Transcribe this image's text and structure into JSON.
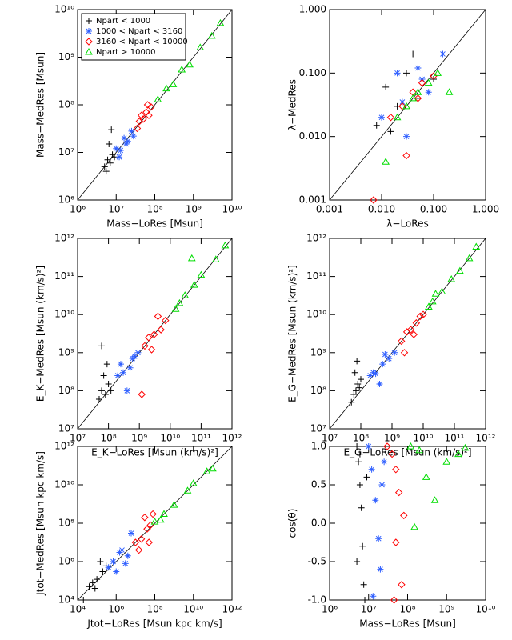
{
  "chart_data": [
    {
      "type": "scatter",
      "log_x": true,
      "log_y": true,
      "identity_line": true,
      "legend": "upper left",
      "x_label": "Mass−LoRes [Msun]",
      "y_label": "Mass−MedRes [Msun]",
      "xlim": [
        1000000.0,
        10000000000.0
      ],
      "ylim": [
        1000000.0,
        10000000000.0
      ],
      "xticks": [
        {
          "value": 1000000.0,
          "label": "10⁶"
        },
        {
          "value": 10000000.0,
          "label": "10⁷"
        },
        {
          "value": 100000000.0,
          "label": "10⁸"
        },
        {
          "value": 1000000000.0,
          "label": "10⁹"
        },
        {
          "value": 10000000000.0,
          "label": "10¹⁰"
        }
      ],
      "yticks": [
        {
          "value": 1000000.0,
          "label": "10⁶"
        },
        {
          "value": 10000000.0,
          "label": "10⁷"
        },
        {
          "value": 100000000.0,
          "label": "10⁸"
        },
        {
          "value": 1000000000.0,
          "label": "10⁹"
        },
        {
          "value": 10000000000.0,
          "label": "10¹⁰"
        }
      ],
      "series": [
        {
          "name": "Npart < 1000",
          "color": "#000000",
          "marker": "plus",
          "x": [
            5000000.0,
            6000000.0,
            7000000.0,
            8000000.0,
            6500000.0,
            9000000.0,
            7500000.0,
            5500000.0
          ],
          "y": [
            5000000.0,
            7000000.0,
            6000000.0,
            9000000.0,
            15000000.0,
            8000000.0,
            30000000.0,
            4000000.0
          ]
        },
        {
          "name": "1000 < Npart < 3160",
          "color": "#2f5fff",
          "marker": "star",
          "x": [
            10000000.0,
            13000000.0,
            16000000.0,
            20000000.0,
            25000000.0,
            12000000.0,
            28000000.0,
            18000000.0
          ],
          "y": [
            12000000.0,
            11000000.0,
            20000000.0,
            17000000.0,
            28000000.0,
            8000000.0,
            22000000.0,
            15000000.0
          ]
        },
        {
          "name": "3160 < Npart < 10000",
          "color": "#ff0000",
          "marker": "diamond",
          "x": [
            35000000.0,
            40000000.0,
            50000000.0,
            60000000.0,
            70000000.0,
            45000000.0,
            80000000.0,
            65000000.0
          ],
          "y": [
            32000000.0,
            45000000.0,
            50000000.0,
            70000000.0,
            60000000.0,
            60000000.0,
            90000000.0,
            100000000.0
          ]
        },
        {
          "name": "Npart > 10000",
          "color": "#00dd00",
          "marker": "triangle",
          "x": [
            120000000.0,
            200000000.0,
            300000000.0,
            500000000.0,
            800000000.0,
            1500000000.0,
            3000000000.0,
            5000000000.0
          ],
          "y": [
            130000000.0,
            220000000.0,
            270000000.0,
            550000000.0,
            700000000.0,
            1600000000.0,
            2800000000.0,
            5200000000.0
          ]
        }
      ]
    },
    {
      "type": "scatter",
      "log_x": true,
      "log_y": true,
      "identity_line": true,
      "x_label": "λ−LoRes",
      "y_label": "λ−MedRes",
      "xlim": [
        0.001,
        1
      ],
      "ylim": [
        0.001,
        1
      ],
      "xticks": [
        0.001,
        {
          "value": 0.01,
          "label": "0.010"
        },
        {
          "value": 0.1,
          "label": "0.100"
        },
        {
          "value": 1,
          "label": "1.000"
        }
      ],
      "yticks": [
        0.001,
        {
          "value": 0.01,
          "label": "0.010"
        },
        {
          "value": 0.1,
          "label": "0.100"
        },
        {
          "value": 1,
          "label": "1.000"
        }
      ],
      "series": [
        {
          "color": "#000000",
          "marker": "plus",
          "x": [
            0.008,
            0.012,
            0.02,
            0.03,
            0.05,
            0.015,
            0.04,
            0.1
          ],
          "y": [
            0.015,
            0.06,
            0.03,
            0.1,
            0.04,
            0.012,
            0.2,
            0.08
          ]
        },
        {
          "color": "#2f5fff",
          "marker": "star",
          "x": [
            0.01,
            0.02,
            0.03,
            0.05,
            0.08,
            0.15,
            0.025,
            0.06
          ],
          "y": [
            0.02,
            0.1,
            0.01,
            0.12,
            0.05,
            0.2,
            0.035,
            0.08
          ]
        },
        {
          "color": "#ff0000",
          "marker": "diamond",
          "x": [
            0.007,
            0.015,
            0.03,
            0.04,
            0.06,
            0.1,
            0.025,
            0.05
          ],
          "y": [
            0.001,
            0.02,
            0.005,
            0.05,
            0.07,
            0.09,
            0.03,
            0.04
          ]
        },
        {
          "color": "#00dd00",
          "marker": "triangle",
          "x": [
            0.012,
            0.02,
            0.03,
            0.05,
            0.08,
            0.12,
            0.2,
            0.04
          ],
          "y": [
            0.004,
            0.02,
            0.03,
            0.05,
            0.07,
            0.1,
            0.05,
            0.04
          ]
        }
      ]
    },
    {
      "type": "scatter",
      "log_x": true,
      "log_y": true,
      "identity_line": true,
      "x_label": "E_K−LoRes [Msun (km/s)²]",
      "y_label": "E_K−MedRes [Msun (km/s)²]",
      "xlim": [
        10000000.0,
        1000000000000.0
      ],
      "ylim": [
        10000000.0,
        1000000000000.0
      ],
      "xticks": [
        {
          "value": 10000000.0,
          "label": "10⁷"
        },
        {
          "value": 100000000.0,
          "label": "10⁸"
        },
        {
          "value": 1000000000.0,
          "label": "10⁹"
        },
        {
          "value": 10000000000.0,
          "label": "10¹⁰"
        },
        {
          "value": 100000000000.0,
          "label": "10¹¹"
        },
        {
          "value": 1000000000000.0,
          "label": "10¹²"
        }
      ],
      "yticks": [
        {
          "value": 10000000.0,
          "label": "10⁷"
        },
        {
          "value": 100000000.0,
          "label": "10⁸"
        },
        {
          "value": 1000000000.0,
          "label": "10⁹"
        },
        {
          "value": 10000000000.0,
          "label": "10¹⁰"
        },
        {
          "value": 100000000000.0,
          "label": "10¹¹"
        },
        {
          "value": 1000000000000.0,
          "label": "10¹²"
        }
      ],
      "series": [
        {
          "color": "#000000",
          "marker": "plus",
          "x": [
            50000000.0,
            60000000.0,
            80000000.0,
            100000000.0,
            70000000.0,
            120000000.0,
            90000000.0,
            60000000.0
          ],
          "y": [
            60000000.0,
            100000000.0,
            80000000.0,
            150000000.0,
            250000000.0,
            100000000.0,
            500000000.0,
            1500000000.0
          ]
        },
        {
          "color": "#2f5fff",
          "marker": "star",
          "x": [
            200000000.0,
            300000000.0,
            500000000.0,
            700000000.0,
            400000000.0,
            250000000.0,
            600000000.0,
            900000000.0
          ],
          "y": [
            250000000.0,
            300000000.0,
            400000000.0,
            800000000.0,
            100000000.0,
            500000000.0,
            700000000.0,
            1000000000.0
          ]
        },
        {
          "color": "#ff0000",
          "marker": "diamond",
          "x": [
            1500000000.0,
            2000000000.0,
            3000000000.0,
            5000000000.0,
            7000000000.0,
            2500000000.0,
            4000000000.0,
            1200000000.0
          ],
          "y": [
            1500000000.0,
            2500000000.0,
            3000000000.0,
            4000000000.0,
            7000000000.0,
            1200000000.0,
            9000000000.0,
            80000000.0
          ]
        },
        {
          "color": "#00dd00",
          "marker": "triangle",
          "x": [
            15000000000.0,
            30000000000.0,
            60000000000.0,
            100000000000.0,
            300000000000.0,
            600000000000.0,
            20000000000.0,
            50000000000.0
          ],
          "y": [
            14000000000.0,
            32000000000.0,
            60000000000.0,
            110000000000.0,
            280000000000.0,
            650000000000.0,
            20000000000.0,
            300000000000.0
          ]
        }
      ]
    },
    {
      "type": "scatter",
      "log_x": true,
      "log_y": true,
      "identity_line": true,
      "x_label": "E_G−LoRes [Msun (km/s)²]",
      "y_label": "E_G−MedRes [Msun (km/s)²]",
      "xlim": [
        10000000.0,
        1000000000000.0
      ],
      "ylim": [
        10000000.0,
        1000000000000.0
      ],
      "xticks": [
        {
          "value": 10000000.0,
          "label": "10⁷"
        },
        {
          "value": 100000000.0,
          "label": "10⁸"
        },
        {
          "value": 1000000000.0,
          "label": "10⁹"
        },
        {
          "value": 10000000000.0,
          "label": "10¹⁰"
        },
        {
          "value": 100000000000.0,
          "label": "10¹¹"
        },
        {
          "value": 1000000000000.0,
          "label": "10¹²"
        }
      ],
      "yticks": [
        {
          "value": 10000000.0,
          "label": "10⁷"
        },
        {
          "value": 100000000.0,
          "label": "10⁸"
        },
        {
          "value": 1000000000.0,
          "label": "10⁹"
        },
        {
          "value": 10000000000.0,
          "label": "10¹⁰"
        },
        {
          "value": 100000000000.0,
          "label": "10¹¹"
        },
        {
          "value": 1000000000000.0,
          "label": "10¹²"
        }
      ],
      "series": [
        {
          "color": "#000000",
          "marker": "plus",
          "x": [
            50000000.0,
            60000000.0,
            70000000.0,
            80000000.0,
            100000000.0,
            65000000.0,
            90000000.0,
            75000000.0
          ],
          "y": [
            50000000.0,
            80000000.0,
            100000000.0,
            150000000.0,
            200000000.0,
            300000000.0,
            120000000.0,
            600000000.0
          ]
        },
        {
          "color": "#2f5fff",
          "marker": "star",
          "x": [
            200000000.0,
            300000000.0,
            500000000.0,
            800000000.0,
            1200000000.0,
            400000000.0,
            600000000.0,
            250000000.0
          ],
          "y": [
            250000000.0,
            280000000.0,
            500000000.0,
            700000000.0,
            1000000000.0,
            150000000.0,
            900000000.0,
            300000000.0
          ]
        },
        {
          "color": "#ff0000",
          "marker": "diamond",
          "x": [
            2000000000.0,
            3000000000.0,
            4000000000.0,
            6000000000.0,
            8000000000.0,
            5000000000.0,
            2500000000.0,
            10000000000.0
          ],
          "y": [
            2000000000.0,
            3500000000.0,
            4000000000.0,
            6000000000.0,
            9000000000.0,
            3000000000.0,
            1000000000.0,
            10000000000.0
          ]
        },
        {
          "color": "#00dd00",
          "marker": "triangle",
          "x": [
            15000000000.0,
            20000000000.0,
            40000000000.0,
            80000000000.0,
            150000000000.0,
            300000000000.0,
            500000000000.0,
            25000000000.0
          ],
          "y": [
            16000000000.0,
            22000000000.0,
            40000000000.0,
            85000000000.0,
            140000000000.0,
            300000000000.0,
            600000000000.0,
            35000000000.0
          ]
        }
      ]
    },
    {
      "type": "scatter",
      "log_x": true,
      "log_y": true,
      "identity_line": true,
      "x_label": "Jtot−LoRes [Msun kpc km/s]",
      "y_label": "Jtot−MedRes [Msun kpc km/s]",
      "xlim": [
        10000.0,
        1000000000000.0
      ],
      "ylim": [
        10000.0,
        1000000000000.0
      ],
      "xticks": [
        {
          "value": 10000.0,
          "label": "10⁴"
        },
        {
          "value": 1000000.0,
          "label": "10⁶"
        },
        {
          "value": 100000000.0,
          "label": "10⁸"
        },
        {
          "value": 10000000000.0,
          "label": "10¹⁰"
        },
        {
          "value": 1000000000000.0,
          "label": "10¹²"
        }
      ],
      "yticks": [
        {
          "value": 10000.0,
          "label": "10⁴"
        },
        {
          "value": 1000000.0,
          "label": "10⁶"
        },
        {
          "value": 100000000.0,
          "label": "10⁸"
        },
        {
          "value": 10000000000.0,
          "label": "10¹⁰"
        },
        {
          "value": 1000000000000.0,
          "label": "10¹²"
        }
      ],
      "series": [
        {
          "color": "#000000",
          "marker": "plus",
          "x": [
            20000.0,
            40000.0,
            60000.0,
            100000.0,
            200000.0,
            80000.0,
            150000.0,
            300000.0
          ],
          "y": [
            10000.0,
            50000.0,
            80000.0,
            120000.0,
            300000.0,
            40000.0,
            1000000.0,
            600000.0
          ]
        },
        {
          "color": "#2f5fff",
          "marker": "star",
          "x": [
            400000.0,
            700000.0,
            1000000.0,
            2000000.0,
            4000000.0,
            6000000.0,
            1500000.0,
            3000000.0
          ],
          "y": [
            500000.0,
            1000000.0,
            300000.0,
            4000000.0,
            2000000.0,
            30000000.0,
            3000000.0,
            800000.0
          ]
        },
        {
          "color": "#ff0000",
          "marker": "diamond",
          "x": [
            10000000.0,
            20000000.0,
            40000000.0,
            60000000.0,
            80000000.0,
            30000000.0,
            50000000.0,
            15000000.0
          ],
          "y": [
            10000000.0,
            15000000.0,
            50000000.0,
            80000000.0,
            300000000.0,
            200000000.0,
            10000000.0,
            4000000.0
          ]
        },
        {
          "color": "#00dd00",
          "marker": "triangle",
          "x": [
            100000000.0,
            300000000.0,
            1000000000.0,
            5000000000.0,
            10000000000.0,
            50000000000.0,
            200000000.0,
            100000000000.0
          ],
          "y": [
            120000000.0,
            300000000.0,
            900000000.0,
            5000000000.0,
            12000000000.0,
            50000000000.0,
            150000000.0,
            70000000000.0
          ]
        }
      ]
    },
    {
      "type": "scatter",
      "log_x": true,
      "log_y": false,
      "identity_line": false,
      "x_label": "Mass−LoRes [Msun]",
      "y_label": "cos(θ)",
      "xlim": [
        1000000.0,
        10000000000.0
      ],
      "ylim": [
        -1,
        1
      ],
      "xticks": [
        {
          "value": 1000000.0,
          "label": "10⁶"
        },
        {
          "value": 10000000.0,
          "label": "10⁷"
        },
        {
          "value": 100000000.0,
          "label": "10⁸"
        },
        {
          "value": 1000000000.0,
          "label": "10⁹"
        },
        {
          "value": 10000000000.0,
          "label": "10¹⁰"
        }
      ],
      "yticks": [
        {
          "value": -1,
          "label": "-1.0"
        },
        {
          "value": -0.5,
          "label": "-0.5"
        },
        {
          "value": 0,
          "label": "0.0"
        },
        {
          "value": 0.5,
          "label": "0.5"
        },
        {
          "value": 1,
          "label": "1.0"
        }
      ],
      "series": [
        {
          "color": "#000000",
          "marker": "plus",
          "x": [
            5000000.0,
            5500000.0,
            6000000.0,
            6500000.0,
            7000000.0,
            7500000.0,
            8000000.0,
            9000000.0,
            5000000.0,
            6000000.0
          ],
          "y": [
            1,
            0.8,
            0.5,
            0.2,
            -0.3,
            -0.8,
            -1,
            0.6,
            -0.5,
            0.9
          ]
        },
        {
          "color": "#2f5fff",
          "marker": "star",
          "x": [
            10000000.0,
            12000000.0,
            15000000.0,
            18000000.0,
            20000000.0,
            25000000.0,
            13000000.0,
            22000000.0
          ],
          "y": [
            1,
            0.7,
            0.3,
            -0.2,
            -0.6,
            0.8,
            -0.95,
            0.5
          ]
        },
        {
          "color": "#ff0000",
          "marker": "diamond",
          "x": [
            30000000.0,
            40000000.0,
            50000000.0,
            60000000.0,
            80000000.0,
            50000000.0,
            70000000.0,
            45000000.0
          ],
          "y": [
            1,
            0.9,
            0.7,
            0.4,
            0.1,
            -0.25,
            -0.8,
            -1
          ]
        },
        {
          "color": "#00dd00",
          "marker": "triangle",
          "x": [
            120000000.0,
            200000000.0,
            300000000.0,
            500000000.0,
            1000000000.0,
            2000000000.0,
            3000000000.0,
            150000000.0
          ],
          "y": [
            1,
            0.95,
            0.6,
            0.3,
            0.8,
            0.9,
            0.98,
            -0.05
          ]
        }
      ]
    }
  ]
}
